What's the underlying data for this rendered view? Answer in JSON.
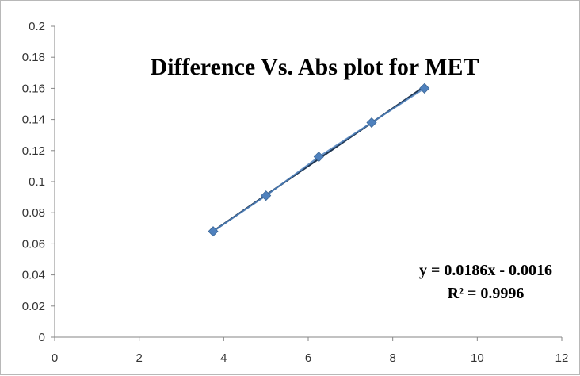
{
  "chart_data": {
    "type": "scatter",
    "title": "Difference Vs. Abs plot for MET",
    "xlabel": "",
    "ylabel": "",
    "xlim": [
      0,
      12
    ],
    "ylim": [
      0,
      0.2
    ],
    "x_ticks": [
      0,
      2,
      4,
      6,
      8,
      10,
      12
    ],
    "y_ticks": [
      0,
      0.02,
      0.04,
      0.06,
      0.08,
      0.1,
      0.12,
      0.14,
      0.16,
      0.18,
      0.2
    ],
    "grid": false,
    "legend": "none",
    "series": [
      {
        "x": [
          3.75,
          5,
          6.25,
          7.5,
          8.75
        ],
        "y": [
          0.068,
          0.091,
          0.116,
          0.138,
          0.16
        ],
        "marker": "diamond",
        "color": "#4f81bd"
      }
    ],
    "trendline": {
      "slope": 0.0186,
      "intercept": -0.0016,
      "x_range": [
        3.75,
        8.8
      ],
      "color": "#1f3550"
    },
    "annotations": {
      "equation": "y = 0.0186x - 0.0016",
      "r_squared": "R² = 0.9996"
    }
  }
}
